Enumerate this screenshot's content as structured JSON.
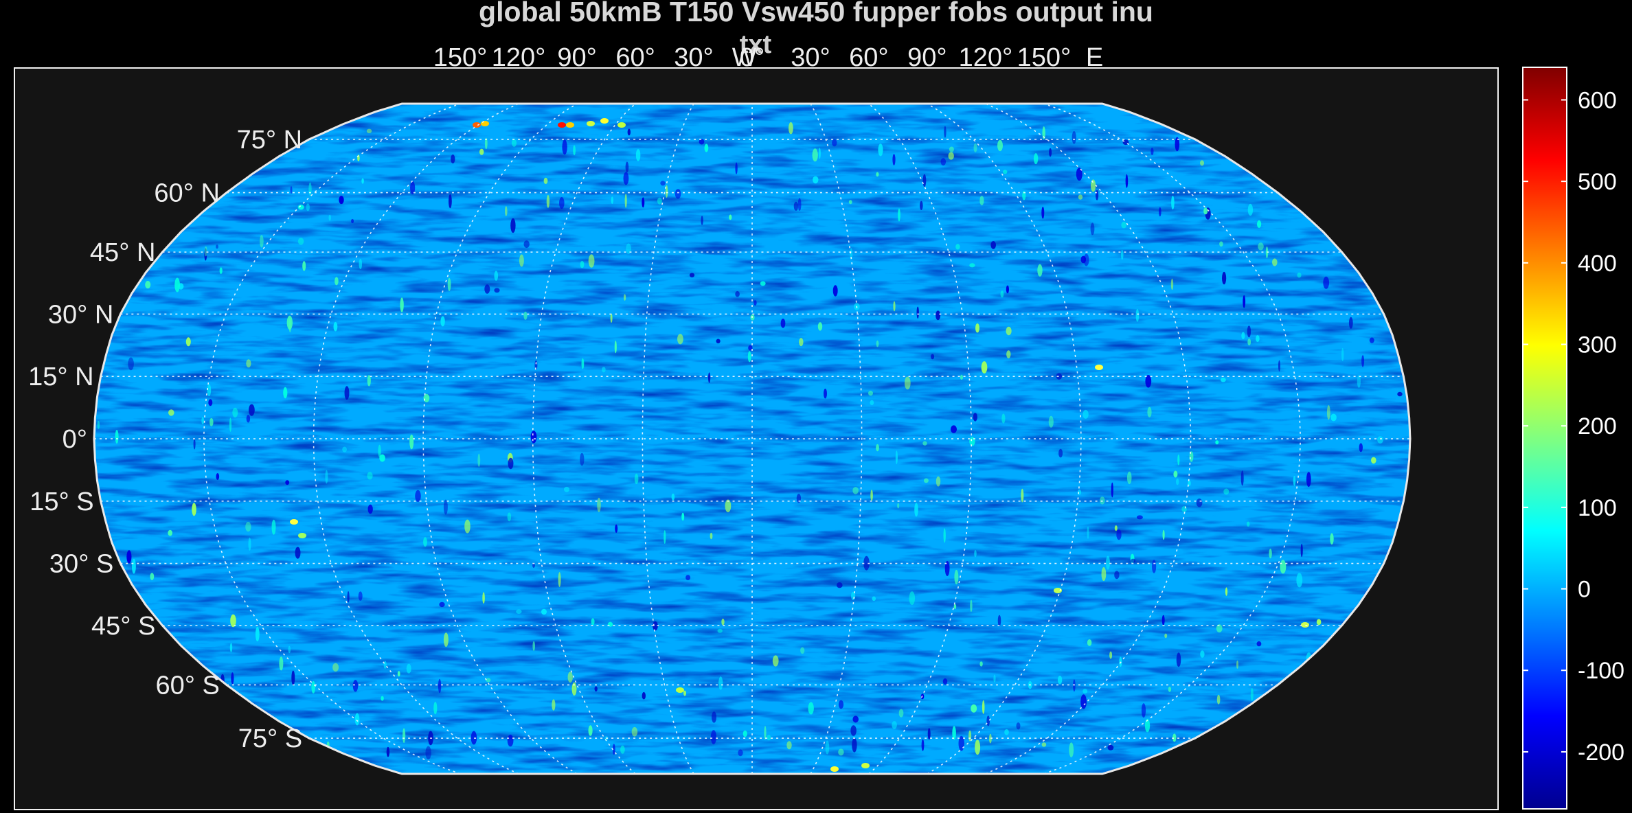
{
  "title": "global 50kmB T150 Vsw450 fupper fobs output inu",
  "subtitle": "txt",
  "lat_labels": [
    {
      "lat": 75,
      "text": "75° N"
    },
    {
      "lat": 60,
      "text": "60° N"
    },
    {
      "lat": 45,
      "text": "45° N"
    },
    {
      "lat": 30,
      "text": "30° N"
    },
    {
      "lat": 15,
      "text": "15° N"
    },
    {
      "lat": 0,
      "text": "0°"
    },
    {
      "lat": -15,
      "text": "15° S"
    },
    {
      "lat": -30,
      "text": "30° S"
    },
    {
      "lat": -45,
      "text": "45° S"
    },
    {
      "lat": -60,
      "text": "60° S"
    },
    {
      "lat": -75,
      "text": "75° S"
    }
  ],
  "lon_labels": [
    {
      "lon": -150,
      "text": "150°"
    },
    {
      "lon": -120,
      "text": "120°"
    },
    {
      "lon": -90,
      "text": "90°"
    },
    {
      "lon": -60,
      "text": "60°"
    },
    {
      "lon": -30,
      "text": "30°"
    },
    {
      "lon": -4,
      "text": "W"
    },
    {
      "lon": 0,
      "text": "0°"
    },
    {
      "lon": 30,
      "text": "30°"
    },
    {
      "lon": 60,
      "text": "60°"
    },
    {
      "lon": 90,
      "text": "90°"
    },
    {
      "lon": 120,
      "text": "120°"
    },
    {
      "lon": 150,
      "text": "150°"
    },
    {
      "lon": 176,
      "text": "E"
    }
  ],
  "colorbar": {
    "min": -270,
    "max": 640,
    "ticks": [
      600,
      500,
      400,
      300,
      200,
      100,
      0,
      -100,
      -200
    ],
    "tick_labels": [
      "600",
      "500",
      "400",
      "300",
      "200",
      "100",
      "0",
      "-100",
      "-200"
    ],
    "colors": [
      "#00008f",
      "#0000ff",
      "#0080ff",
      "#00ffff",
      "#80ff80",
      "#ffff00",
      "#ff8000",
      "#ff0000",
      "#800000"
    ]
  },
  "map": {
    "projection": "robinson",
    "background_color": "#00aaff",
    "graticule_lat_step": 15,
    "graticule_lon_step": 30,
    "grid": true
  }
}
